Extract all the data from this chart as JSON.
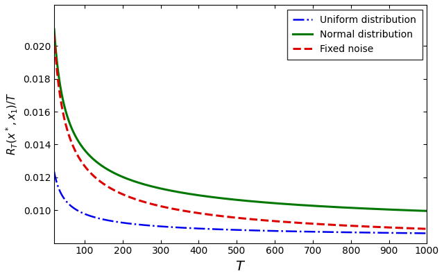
{
  "title": "",
  "xlabel": "$T$",
  "ylabel": "$R_T(x^*, x_1)/T$",
  "xlim": [
    20,
    1000
  ],
  "ylim": [
    0.008,
    0.0225
  ],
  "yticks": [
    0.01,
    0.012,
    0.014,
    0.016,
    0.018,
    0.02
  ],
  "xticks": [
    100,
    200,
    300,
    400,
    500,
    600,
    700,
    800,
    900,
    1000
  ],
  "uniform_color": "#0000EE",
  "normal_color": "#007700",
  "fixed_color": "#DD0000",
  "legend_labels": [
    "Uniform distribution",
    "Normal distribution",
    "Fixed noise"
  ],
  "figsize": [
    6.4,
    4.01
  ],
  "dpi": 100
}
